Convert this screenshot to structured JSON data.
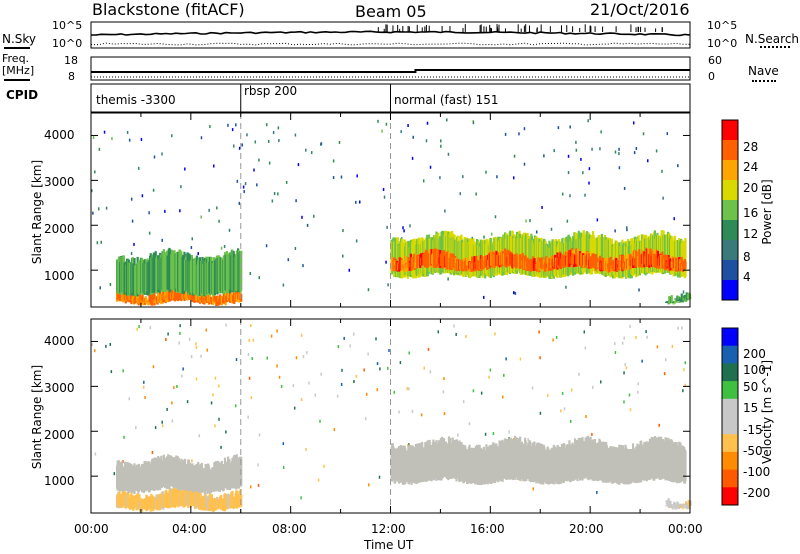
{
  "header": {
    "station": "Blackstone (fitACF)",
    "beam": "Beam 05",
    "date": "21/Oct/2016"
  },
  "labels": {
    "nsky": "N.Sky",
    "nsearch": "N.Search",
    "freq": "Freq.",
    "freq_unit": "[MHz]",
    "nave": "Nave",
    "cpid": "CPID",
    "tick_1e5": "10^5",
    "tick_1e0": "10^0",
    "freq_hi": "18",
    "freq_lo": "8",
    "nave_hi": "60",
    "nave_lo": "0"
  },
  "cpid_segments": [
    {
      "start_hour": 0,
      "label": "themis -3300"
    },
    {
      "start_hour": 6,
      "label": "rbsp 200"
    },
    {
      "start_hour": 12,
      "label": "normal (fast) 151"
    }
  ],
  "colors": {
    "power_scale": [
      "#0000ff",
      "#1f4fa0",
      "#3a7a7a",
      "#2e8b57",
      "#6cc24a",
      "#d9d900",
      "#ffa500",
      "#ff6000",
      "#ff0000"
    ],
    "velocity_scale": [
      "#ff0000",
      "#ff5a00",
      "#ff8c00",
      "#ffc04d",
      "#c8c8c8",
      "#c8c8c8",
      "#40c040",
      "#207050",
      "#1a60b0",
      "#0000ff"
    ],
    "ground_scatter": "#c0c0b8"
  },
  "chart_data": [
    {
      "type": "heatmap",
      "title": "Power",
      "ylabel": "Slant Range [km]",
      "xlabel": "Time UT",
      "xlim": [
        "00:00",
        "00:00"
      ],
      "x_ticks": [
        "00:00",
        "04:00",
        "08:00",
        "12:00",
        "16:00",
        "20:00",
        "00:00"
      ],
      "ylim": [
        180,
        4500
      ],
      "y_ticks": [
        "1000",
        "2000",
        "3000",
        "4000"
      ],
      "colorbar_label": "Power [dB]",
      "colorbar_ticks": [
        "4",
        "8",
        "12",
        "16",
        "20",
        "24",
        "28"
      ],
      "colorbar_range": [
        0,
        31
      ],
      "features": [
        {
          "hours": [
            1,
            6
          ],
          "range_km": [
            300,
            500
          ],
          "value_db": 26
        },
        {
          "hours": [
            1,
            6
          ],
          "range_km": [
            500,
            1300
          ],
          "value_db": 14
        },
        {
          "hours": [
            12,
            23.8
          ],
          "range_km": [
            900,
            1700
          ],
          "value_db": 18
        },
        {
          "hours": [
            12,
            23.8
          ],
          "range_km": [
            1050,
            1300
          ],
          "value_db": 27
        },
        {
          "hours": [
            23,
            24
          ],
          "range_km": [
            350,
            450
          ],
          "value_db": 14
        }
      ]
    },
    {
      "type": "heatmap",
      "title": "Velocity",
      "ylabel": "Slant Range [km]",
      "xlabel": "Time UT",
      "x_ticks": [
        "00:00",
        "04:00",
        "08:00",
        "12:00",
        "16:00",
        "20:00",
        "00:00"
      ],
      "ylim": [
        180,
        4500
      ],
      "y_ticks": [
        "1000",
        "2000",
        "3000",
        "4000"
      ],
      "colorbar_label": "Velocity [m s^-1]",
      "colorbar_ticks": [
        "200",
        "100",
        "50",
        "15",
        "-15",
        "-50",
        "-100",
        "-200"
      ],
      "colorbar_range": [
        -250,
        250
      ],
      "features": [
        {
          "hours": [
            1,
            6
          ],
          "range_km": [
            300,
            600
          ],
          "value_ms": -80
        },
        {
          "hours": [
            1,
            6
          ],
          "range_km": [
            700,
            1300
          ],
          "value_ms": 0
        },
        {
          "hours": [
            12,
            23.8
          ],
          "range_km": [
            900,
            1700
          ],
          "value_ms": 0
        },
        {
          "hours": [
            23,
            24
          ],
          "range_km": [
            350,
            450
          ],
          "value_ms": -40
        }
      ]
    }
  ],
  "time_axis_label": "Time UT"
}
